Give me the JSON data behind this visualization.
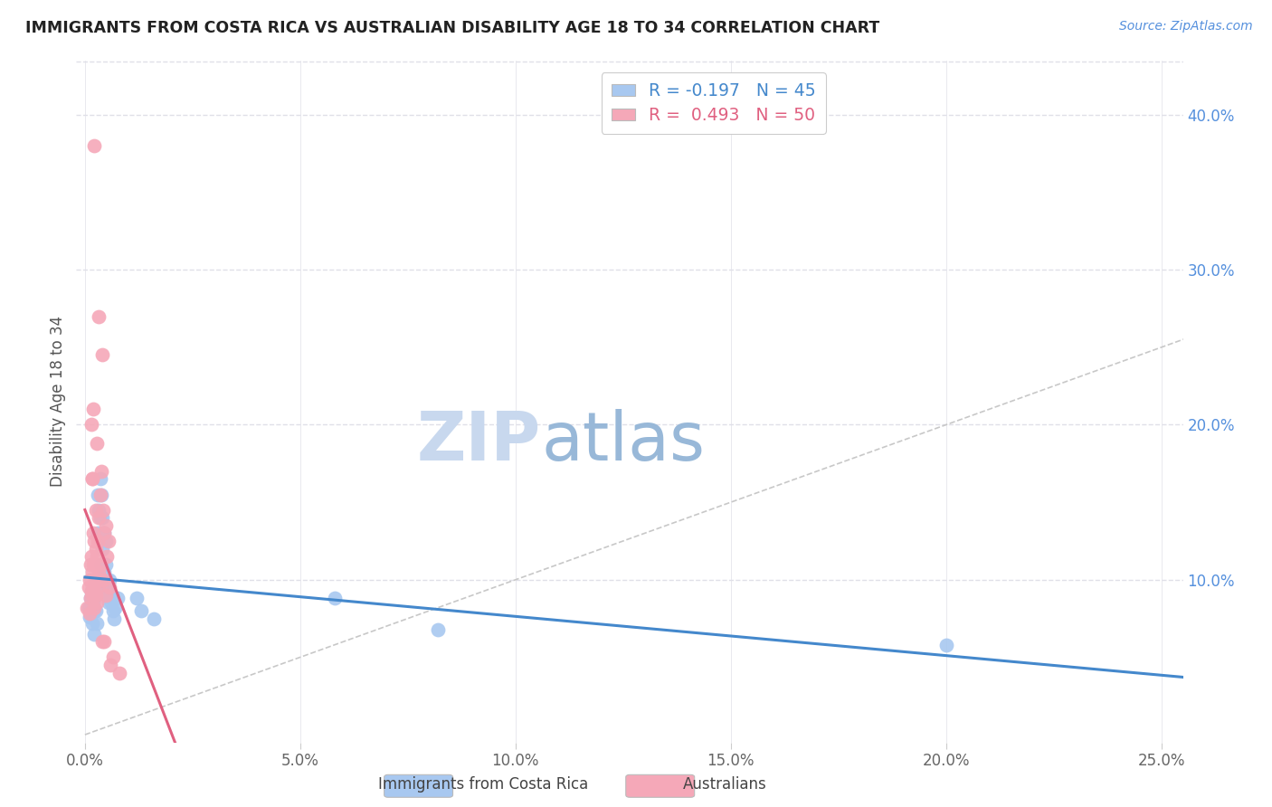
{
  "title": "IMMIGRANTS FROM COSTA RICA VS AUSTRALIAN DISABILITY AGE 18 TO 34 CORRELATION CHART",
  "source": "Source: ZipAtlas.com",
  "xlabel_ticks": [
    "0.0%",
    "5.0%",
    "10.0%",
    "15.0%",
    "20.0%",
    "25.0%"
  ],
  "xlabel_vals": [
    0.0,
    0.05,
    0.1,
    0.15,
    0.2,
    0.25
  ],
  "ylabel_ticks": [
    "10.0%",
    "20.0%",
    "30.0%",
    "40.0%"
  ],
  "ylabel_vals": [
    0.1,
    0.2,
    0.3,
    0.4
  ],
  "xlim": [
    -0.002,
    0.255
  ],
  "ylim": [
    -0.005,
    0.435
  ],
  "ylabel": "Disability Age 18 to 34",
  "legend_label_blue": "Immigrants from Costa Rica",
  "legend_label_pink": "Australians",
  "R_blue": -0.197,
  "N_blue": 45,
  "R_pink": 0.493,
  "N_pink": 50,
  "blue_color": "#a8c8f0",
  "pink_color": "#f5a8b8",
  "trend_blue_color": "#4488cc",
  "trend_pink_color": "#e06080",
  "diag_color": "#c8c8c8",
  "watermark_zip_color": "#c8d8ee",
  "watermark_atlas_color": "#98b8d8",
  "grid_color": "#e0e0e8",
  "blue_scatter": [
    [
      0.0008,
      0.082
    ],
    [
      0.001,
      0.076
    ],
    [
      0.0012,
      0.088
    ],
    [
      0.0015,
      0.092
    ],
    [
      0.0015,
      0.078
    ],
    [
      0.0018,
      0.072
    ],
    [
      0.002,
      0.086
    ],
    [
      0.002,
      0.095
    ],
    [
      0.0022,
      0.08
    ],
    [
      0.0022,
      0.065
    ],
    [
      0.0025,
      0.09
    ],
    [
      0.0025,
      0.08
    ],
    [
      0.0028,
      0.072
    ],
    [
      0.003,
      0.155
    ],
    [
      0.003,
      0.13
    ],
    [
      0.0032,
      0.145
    ],
    [
      0.0035,
      0.14
    ],
    [
      0.0035,
      0.165
    ],
    [
      0.0038,
      0.155
    ],
    [
      0.0038,
      0.11
    ],
    [
      0.004,
      0.14
    ],
    [
      0.004,
      0.12
    ],
    [
      0.0042,
      0.13
    ],
    [
      0.0042,
      0.095
    ],
    [
      0.0045,
      0.105
    ],
    [
      0.0045,
      0.13
    ],
    [
      0.0048,
      0.11
    ],
    [
      0.0048,
      0.125
    ],
    [
      0.005,
      0.1
    ],
    [
      0.0052,
      0.095
    ],
    [
      0.0055,
      0.09
    ],
    [
      0.0055,
      0.085
    ],
    [
      0.0058,
      0.1
    ],
    [
      0.006,
      0.09
    ],
    [
      0.0062,
      0.085
    ],
    [
      0.0065,
      0.08
    ],
    [
      0.0068,
      0.075
    ],
    [
      0.007,
      0.082
    ],
    [
      0.0075,
      0.088
    ],
    [
      0.012,
      0.088
    ],
    [
      0.013,
      0.08
    ],
    [
      0.016,
      0.075
    ],
    [
      0.058,
      0.088
    ],
    [
      0.082,
      0.068
    ],
    [
      0.2,
      0.058
    ]
  ],
  "pink_scatter": [
    [
      0.0005,
      0.082
    ],
    [
      0.0008,
      0.095
    ],
    [
      0.001,
      0.078
    ],
    [
      0.001,
      0.1
    ],
    [
      0.0012,
      0.11
    ],
    [
      0.0012,
      0.088
    ],
    [
      0.0015,
      0.092
    ],
    [
      0.0015,
      0.115
    ],
    [
      0.0015,
      0.2
    ],
    [
      0.0018,
      0.09
    ],
    [
      0.0018,
      0.105
    ],
    [
      0.0018,
      0.165
    ],
    [
      0.002,
      0.095
    ],
    [
      0.002,
      0.11
    ],
    [
      0.002,
      0.13
    ],
    [
      0.002,
      0.21
    ],
    [
      0.0022,
      0.082
    ],
    [
      0.0022,
      0.098
    ],
    [
      0.0022,
      0.125
    ],
    [
      0.0022,
      0.38
    ],
    [
      0.0025,
      0.09
    ],
    [
      0.0025,
      0.12
    ],
    [
      0.0025,
      0.145
    ],
    [
      0.0028,
      0.085
    ],
    [
      0.0028,
      0.115
    ],
    [
      0.0028,
      0.188
    ],
    [
      0.003,
      0.095
    ],
    [
      0.003,
      0.125
    ],
    [
      0.0032,
      0.105
    ],
    [
      0.0032,
      0.14
    ],
    [
      0.0032,
      0.27
    ],
    [
      0.0035,
      0.11
    ],
    [
      0.0035,
      0.155
    ],
    [
      0.0038,
      0.1
    ],
    [
      0.0038,
      0.17
    ],
    [
      0.004,
      0.245
    ],
    [
      0.004,
      0.06
    ],
    [
      0.0042,
      0.145
    ],
    [
      0.0042,
      0.1
    ],
    [
      0.0045,
      0.13
    ],
    [
      0.0045,
      0.06
    ],
    [
      0.0048,
      0.135
    ],
    [
      0.0048,
      0.09
    ],
    [
      0.005,
      0.115
    ],
    [
      0.0055,
      0.125
    ],
    [
      0.0058,
      0.095
    ],
    [
      0.006,
      0.045
    ],
    [
      0.0065,
      0.05
    ],
    [
      0.0018,
      0.165
    ],
    [
      0.008,
      0.04
    ]
  ],
  "pink_trend_xlim": [
    0.0,
    0.022
  ],
  "blue_trend_xlim": [
    0.0,
    0.255
  ]
}
